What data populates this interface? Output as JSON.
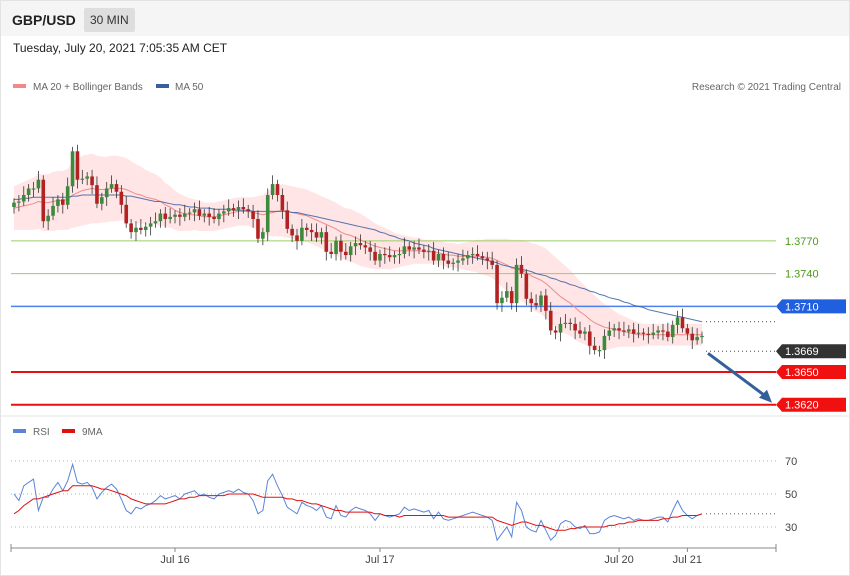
{
  "header": {
    "symbol": "GBP/USD",
    "timeframe": "30 MIN",
    "datetime": "Tuesday, July 20, 2021 7:05:35 AM CET"
  },
  "legend_main": [
    {
      "label": "MA 20 + Bollinger Bands",
      "color": "#f08a8a"
    },
    {
      "label": "MA 50",
      "color": "#3a5fa0"
    }
  ],
  "legend_rsi": [
    {
      "label": "RSI",
      "color": "#5b84d8"
    },
    {
      "label": "9MA",
      "color": "#e01010"
    }
  ],
  "credit": "Research © 2021 Trading Central",
  "colors": {
    "up": "#3d8a3d",
    "down": "#b22222",
    "band": "#ffdcdc",
    "ma20": "#f08a8a",
    "ma50": "#3a5fa0",
    "rsi": "#5b84d8",
    "rsi_ma": "#e01010"
  },
  "chart_data": {
    "type": "candlestick",
    "price_range": [
      1.3606,
      1.3877
    ],
    "levels": [
      {
        "value": 1.377,
        "label": "1.3770",
        "kind": "resistance-green"
      },
      {
        "value": 1.374,
        "label": "1.3740",
        "kind": "resistance-green"
      },
      {
        "value": 1.371,
        "label": "1.3710",
        "kind": "pivot-blue"
      },
      {
        "value": 1.3669,
        "label": "1.3669",
        "kind": "current"
      },
      {
        "value": 1.365,
        "label": "1.3650",
        "kind": "support-red"
      },
      {
        "value": 1.362,
        "label": "1.3620",
        "kind": "support-red"
      }
    ],
    "x_labels": [
      {
        "label": "Jul 16",
        "bar": 33
      },
      {
        "label": "Jul 17",
        "bar": 75
      },
      {
        "label": "Jul 20",
        "bar": 124
      },
      {
        "label": "Jul 21",
        "bar": 138
      }
    ],
    "close": [
      1.3805,
      1.3806,
      1.3812,
      1.3818,
      1.3818,
      1.3826,
      1.3788,
      1.3793,
      1.3802,
      1.3808,
      1.3803,
      1.382,
      1.3852,
      1.3826,
      1.3827,
      1.3829,
      1.3821,
      1.3804,
      1.381,
      1.3818,
      1.3822,
      1.3815,
      1.3803,
      1.3786,
      1.3778,
      1.3782,
      1.378,
      1.3783,
      1.3786,
      1.3788,
      1.3795,
      1.379,
      1.3792,
      1.3794,
      1.3792,
      1.3795,
      1.3796,
      1.3799,
      1.3793,
      1.3795,
      1.3792,
      1.379,
      1.3795,
      1.3797,
      1.38,
      1.3798,
      1.3801,
      1.3799,
      1.3797,
      1.379,
      1.3772,
      1.3778,
      1.3812,
      1.3822,
      1.3812,
      1.3798,
      1.3781,
      1.3775,
      1.377,
      1.3782,
      1.378,
      1.3778,
      1.3773,
      1.3778,
      1.376,
      1.3758,
      1.377,
      1.376,
      1.3757,
      1.3765,
      1.3768,
      1.3766,
      1.3764,
      1.376,
      1.3752,
      1.3758,
      1.3757,
      1.3755,
      1.3757,
      1.3758,
      1.3765,
      1.3762,
      1.3764,
      1.3762,
      1.376,
      1.3761,
      1.3752,
      1.3758,
      1.3752,
      1.3749,
      1.375,
      1.3752,
      1.3754,
      1.3757,
      1.3758,
      1.3756,
      1.3754,
      1.3752,
      1.3748,
      1.3713,
      1.3718,
      1.3724,
      1.3713,
      1.3748,
      1.374,
      1.3717,
      1.3713,
      1.3711,
      1.372,
      1.3706,
      1.3688,
      1.3686,
      1.3694,
      1.3695,
      1.3694,
      1.3688,
      1.3685,
      1.3687,
      1.3674,
      1.367,
      1.367,
      1.3683,
      1.3688,
      1.369,
      1.3688,
      1.3687,
      1.3689,
      1.3685,
      1.3686,
      1.3685,
      1.3684,
      1.3686,
      1.3688,
      1.3687,
      1.3682,
      1.3693,
      1.37,
      1.369,
      1.3685,
      1.3679,
      1.3682,
      1.3683
    ],
    "ma20": [
      1.38,
      1.3801,
      1.3802,
      1.3803,
      1.3804,
      1.3806,
      1.3805,
      1.3805,
      1.3806,
      1.3807,
      1.3807,
      1.3808,
      1.3812,
      1.3814,
      1.3816,
      1.3817,
      1.3818,
      1.3817,
      1.3817,
      1.3817,
      1.3818,
      1.3818,
      1.3818,
      1.3817,
      1.3815,
      1.3813,
      1.3812,
      1.381,
      1.3809,
      1.3808,
      1.3806,
      1.3803,
      1.3801,
      1.3798,
      1.3796,
      1.3795,
      1.3794,
      1.3794,
      1.3793,
      1.3792,
      1.3792,
      1.3792,
      1.3793,
      1.3794,
      1.3795,
      1.3796,
      1.3797,
      1.3797,
      1.3797,
      1.3796,
      1.3795,
      1.3794,
      1.3795,
      1.3796,
      1.3797,
      1.3798,
      1.3797,
      1.3796,
      1.3795,
      1.3794,
      1.3793,
      1.3791,
      1.3789,
      1.3787,
      1.3785,
      1.3783,
      1.3781,
      1.3778,
      1.3776,
      1.3775,
      1.3773,
      1.3771,
      1.3769,
      1.3767,
      1.3765,
      1.3764,
      1.3763,
      1.3762,
      1.3761,
      1.3761,
      1.3761,
      1.3761,
      1.3761,
      1.3761,
      1.376,
      1.376,
      1.376,
      1.3759,
      1.3758,
      1.3757,
      1.3757,
      1.3756,
      1.3756,
      1.3756,
      1.3756,
      1.3756,
      1.3755,
      1.3755,
      1.3754,
      1.3752,
      1.375,
      1.3748,
      1.3745,
      1.3744,
      1.3743,
      1.3741,
      1.3738,
      1.3736,
      1.3734,
      1.3731,
      1.3727,
      1.3723,
      1.3719,
      1.3716,
      1.3713,
      1.3709,
      1.3705,
      1.3702,
      1.3698,
      1.3695,
      1.3693,
      1.3691,
      1.369,
      1.3689,
      1.3688,
      1.3687,
      1.3686,
      1.3685,
      1.3684,
      1.3684,
      1.3684,
      1.3684,
      1.3684,
      1.3684,
      1.3684,
      1.3684,
      1.3684,
      1.3684,
      1.3684,
      1.3684,
      1.3684,
      1.3684
    ],
    "ma50": [
      1.3808,
      1.3808,
      1.3809,
      1.3809,
      1.381,
      1.381,
      1.381,
      1.381,
      1.381,
      1.381,
      1.381,
      1.381,
      1.3811,
      1.3811,
      1.3812,
      1.3812,
      1.3812,
      1.3812,
      1.3812,
      1.3812,
      1.3812,
      1.3812,
      1.3812,
      1.3811,
      1.3811,
      1.381,
      1.3809,
      1.3808,
      1.3807,
      1.3806,
      1.3806,
      1.3805,
      1.3804,
      1.3803,
      1.3803,
      1.3802,
      1.3801,
      1.3801,
      1.38,
      1.38,
      1.38,
      1.3799,
      1.3799,
      1.3799,
      1.3799,
      1.3798,
      1.3798,
      1.3798,
      1.3798,
      1.3797,
      1.3797,
      1.3797,
      1.3797,
      1.3797,
      1.3797,
      1.3797,
      1.3797,
      1.3796,
      1.3796,
      1.3795,
      1.3794,
      1.3793,
      1.3792,
      1.3791,
      1.379,
      1.3789,
      1.3788,
      1.3787,
      1.3786,
      1.3785,
      1.3784,
      1.3783,
      1.3782,
      1.3781,
      1.378,
      1.3778,
      1.3777,
      1.3775,
      1.3774,
      1.3772,
      1.3771,
      1.377,
      1.3768,
      1.3767,
      1.3766,
      1.3765,
      1.3763,
      1.3762,
      1.3761,
      1.376,
      1.3759,
      1.3758,
      1.3757,
      1.3756,
      1.3755,
      1.3754,
      1.3753,
      1.3752,
      1.3751,
      1.375,
      1.3748,
      1.3747,
      1.3746,
      1.3745,
      1.3744,
      1.3743,
      1.3742,
      1.374,
      1.3739,
      1.3738,
      1.3736,
      1.3735,
      1.3733,
      1.3732,
      1.373,
      1.3729,
      1.3727,
      1.3726,
      1.3724,
      1.3723,
      1.3721,
      1.372,
      1.3718,
      1.3717,
      1.3716,
      1.3714,
      1.3713,
      1.3711,
      1.371,
      1.3709,
      1.3707,
      1.3706,
      1.3705,
      1.3704,
      1.3703,
      1.3702,
      1.3701,
      1.37,
      1.3699,
      1.3698,
      1.3697,
      1.3696
    ],
    "bb_half_width": [
      0.002,
      0.0021,
      0.0022,
      0.0023,
      0.0024,
      0.0025,
      0.0026,
      0.0026,
      0.0027,
      0.0027,
      0.0027,
      0.0028,
      0.003,
      0.0031,
      0.0032,
      0.0032,
      0.0032,
      0.0031,
      0.003,
      0.003,
      0.003,
      0.003,
      0.0029,
      0.0029,
      0.0028,
      0.0027,
      0.0026,
      0.0025,
      0.0024,
      0.0023,
      0.0022,
      0.002,
      0.0019,
      0.0018,
      0.0017,
      0.0016,
      0.0015,
      0.0014,
      0.0014,
      0.0013,
      0.0013,
      0.0013,
      0.0013,
      0.0013,
      0.0013,
      0.0013,
      0.0013,
      0.0013,
      0.0013,
      0.0014,
      0.0016,
      0.0018,
      0.002,
      0.0022,
      0.0023,
      0.0024,
      0.0024,
      0.0024,
      0.0024,
      0.0024,
      0.0024,
      0.0024,
      0.0024,
      0.0024,
      0.0024,
      0.0024,
      0.0024,
      0.0024,
      0.0024,
      0.0024,
      0.0024,
      0.0024,
      0.0023,
      0.0022,
      0.0021,
      0.002,
      0.0019,
      0.0018,
      0.0016,
      0.0015,
      0.0014,
      0.0013,
      0.0012,
      0.0012,
      0.0011,
      0.0011,
      0.0011,
      0.0011,
      0.0011,
      0.0011,
      0.0011,
      0.0011,
      0.0012,
      0.0013,
      0.0014,
      0.0015,
      0.0016,
      0.0017,
      0.0018,
      0.002,
      0.0022,
      0.0024,
      0.0026,
      0.0027,
      0.0028,
      0.0029,
      0.003,
      0.0031,
      0.0031,
      0.0032,
      0.0032,
      0.0032,
      0.0032,
      0.0031,
      0.003,
      0.0029,
      0.0028,
      0.0027,
      0.0026,
      0.0025,
      0.0023,
      0.0021,
      0.0019,
      0.0017,
      0.0015,
      0.0014,
      0.0013,
      0.0012,
      0.0011,
      0.001,
      0.001,
      0.001,
      0.001,
      0.001,
      0.001,
      0.001,
      0.001,
      0.001,
      0.001,
      0.001,
      0.001,
      0.001
    ],
    "projection": {
      "from_price": 1.3668,
      "to_price": 1.362
    },
    "rsi": {
      "ticks": [
        70,
        50,
        30
      ],
      "range": [
        20,
        80
      ],
      "rsi": [
        50,
        46,
        55,
        57,
        59,
        40,
        48,
        48,
        53,
        57,
        52,
        58,
        68,
        57,
        56,
        57,
        54,
        47,
        51,
        54,
        56,
        53,
        47,
        40,
        38,
        42,
        41,
        43,
        44,
        46,
        49,
        47,
        48,
        49,
        47,
        50,
        51,
        52,
        49,
        50,
        48,
        47,
        50,
        51,
        52,
        51,
        53,
        51,
        50,
        46,
        38,
        40,
        58,
        62,
        55,
        49,
        42,
        40,
        38,
        45,
        43,
        42,
        40,
        43,
        36,
        35,
        43,
        37,
        36,
        40,
        42,
        41,
        40,
        38,
        34,
        38,
        37,
        36,
        37,
        38,
        42,
        40,
        41,
        40,
        39,
        40,
        35,
        39,
        35,
        34,
        35,
        36,
        37,
        38,
        39,
        38,
        37,
        36,
        34,
        22,
        26,
        30,
        24,
        45,
        40,
        30,
        28,
        27,
        34,
        28,
        22,
        25,
        32,
        34,
        33,
        30,
        29,
        31,
        26,
        26,
        27,
        34,
        36,
        37,
        36,
        35,
        36,
        34,
        35,
        34,
        34,
        35,
        36,
        36,
        33,
        40,
        46,
        40,
        37,
        35,
        37,
        38
      ],
      "ma": [
        38,
        40,
        43,
        45,
        47,
        47,
        48,
        49,
        50,
        51,
        52,
        52,
        55,
        55,
        55,
        55,
        55,
        54,
        53,
        53,
        52,
        51,
        50,
        49,
        47,
        46,
        45,
        44,
        44,
        44,
        44,
        44,
        45,
        46,
        47,
        47,
        48,
        48,
        49,
        49,
        49,
        49,
        49,
        49,
        50,
        50,
        50,
        50,
        50,
        50,
        49,
        48,
        48,
        48,
        48,
        48,
        47,
        47,
        46,
        46,
        45,
        44,
        44,
        43,
        42,
        41,
        40,
        40,
        39,
        39,
        39,
        39,
        39,
        39,
        38,
        38,
        37,
        37,
        37,
        36,
        37,
        37,
        37,
        37,
        37,
        37,
        37,
        37,
        37,
        36,
        36,
        36,
        36,
        36,
        36,
        36,
        36,
        36,
        36,
        34,
        33,
        32,
        31,
        32,
        33,
        33,
        32,
        31,
        31,
        30,
        29,
        28,
        28,
        28,
        29,
        29,
        30,
        30,
        30,
        30,
        30,
        30,
        31,
        31,
        32,
        32,
        33,
        33,
        34,
        34,
        34,
        34,
        34,
        35,
        35,
        36,
        36,
        37,
        37,
        37,
        37,
        38
      ]
    }
  }
}
